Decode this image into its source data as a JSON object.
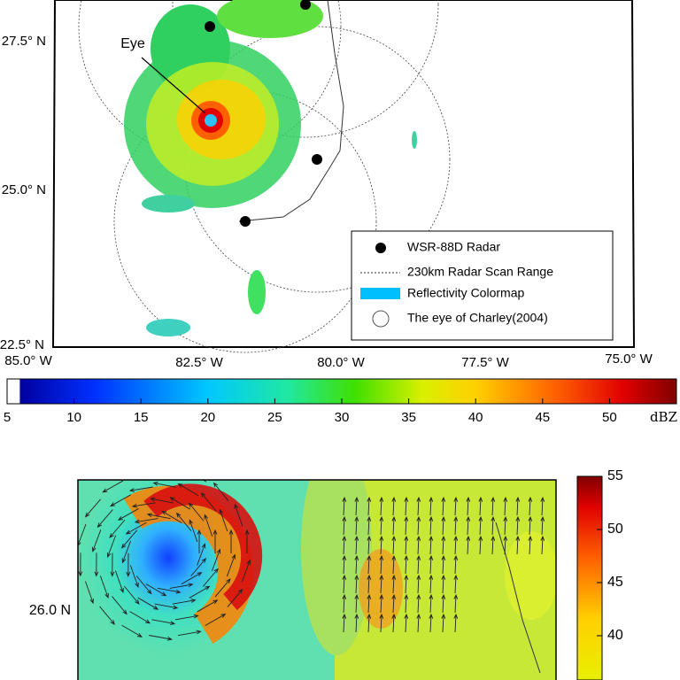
{
  "top_map": {
    "lat_labels": [
      "27.5° N",
      "25.0° N",
      "22.5° N"
    ],
    "lon_labels": [
      "85.0° W",
      "82.5° W",
      "80.0° W",
      "77.5° W",
      "75.0° W"
    ],
    "eye_label": "Eye",
    "legend": [
      "WSR-88D Radar",
      "230km Radar Scan Range",
      "Reflectivity Colormap",
      "The eye of Charley(2004)"
    ]
  },
  "colorbar": {
    "range": [
      5,
      55
    ],
    "ticks": [
      5,
      10,
      15,
      20,
      25,
      30,
      35,
      40,
      45,
      50
    ],
    "unit": "dBZ"
  },
  "bottom_map": {
    "lat_label": "26.0 N",
    "colorbar": {
      "range": [
        35,
        55
      ],
      "ticks": [
        40,
        45,
        50,
        55
      ]
    }
  }
}
